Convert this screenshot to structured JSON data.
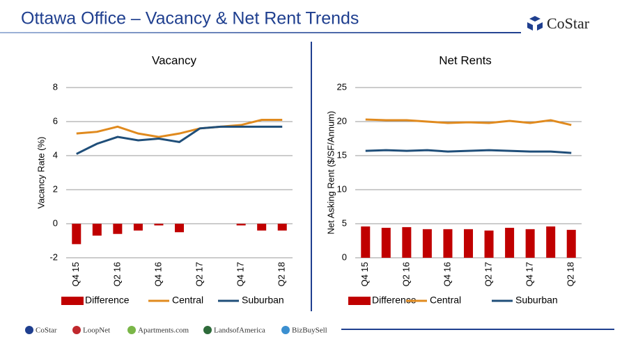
{
  "header": {
    "title": "Ottawa Office – Vacancy & Net Rent Trends",
    "logo": "CoStar"
  },
  "chart_data": [
    {
      "type": "bar_line",
      "title": "Vacancy",
      "y_label": "Vacancy Rate (%)",
      "categories": [
        "Q4 15",
        null,
        "Q2 16",
        null,
        "Q4 16",
        null,
        "Q2 17",
        null,
        "Q4 17",
        null,
        "Q2 18"
      ],
      "ylim": [
        -2,
        8
      ],
      "yticks": [
        -2,
        0,
        2,
        4,
        6,
        8
      ],
      "grid": true,
      "series": [
        {
          "name": "Difference",
          "kind": "bar",
          "color": "#c00000",
          "values": [
            -1.2,
            -0.7,
            -0.6,
            -0.4,
            -0.1,
            -0.5,
            0,
            0,
            -0.1,
            -0.4,
            -0.4
          ]
        },
        {
          "name": "Central",
          "kind": "line",
          "color": "#e08a1e",
          "values": [
            5.3,
            5.4,
            5.7,
            5.3,
            5.1,
            5.3,
            5.6,
            5.7,
            5.8,
            6.1,
            6.1
          ]
        },
        {
          "name": "Suburban",
          "kind": "line",
          "color": "#1f4e79",
          "values": [
            4.1,
            4.7,
            5.1,
            4.9,
            5.0,
            4.8,
            5.6,
            5.7,
            5.7,
            5.7,
            5.7
          ]
        }
      ]
    },
    {
      "type": "bar_line",
      "title": "Net Rents",
      "y_label": "Net Asking Rent ($/SF/Annum)",
      "categories": [
        "Q4 15",
        null,
        "Q2 16",
        null,
        "Q4 16",
        null,
        "Q2 17",
        null,
        "Q4 17",
        null,
        "Q2 18"
      ],
      "ylim": [
        0,
        25
      ],
      "yticks": [
        0,
        5,
        10,
        15,
        20,
        25
      ],
      "grid": true,
      "series": [
        {
          "name": "Difference",
          "kind": "bar",
          "color": "#c00000",
          "values": [
            4.6,
            4.4,
            4.5,
            4.2,
            4.2,
            4.2,
            4.0,
            4.4,
            4.2,
            4.6,
            4.1
          ]
        },
        {
          "name": "Central",
          "kind": "line",
          "color": "#e08a1e",
          "values": [
            20.3,
            20.2,
            20.2,
            20.0,
            19.8,
            19.9,
            19.8,
            20.1,
            19.8,
            20.2,
            19.5
          ]
        },
        {
          "name": "Suburban",
          "kind": "line",
          "color": "#1f4e79",
          "values": [
            15.7,
            15.8,
            15.7,
            15.8,
            15.6,
            15.7,
            15.8,
            15.7,
            15.6,
            15.6,
            15.4
          ]
        }
      ]
    }
  ],
  "footer": {
    "brands": [
      "CoStar",
      "LoopNet",
      "Apartments.com",
      "LandsofAmerica",
      "BizBuySell"
    ]
  }
}
